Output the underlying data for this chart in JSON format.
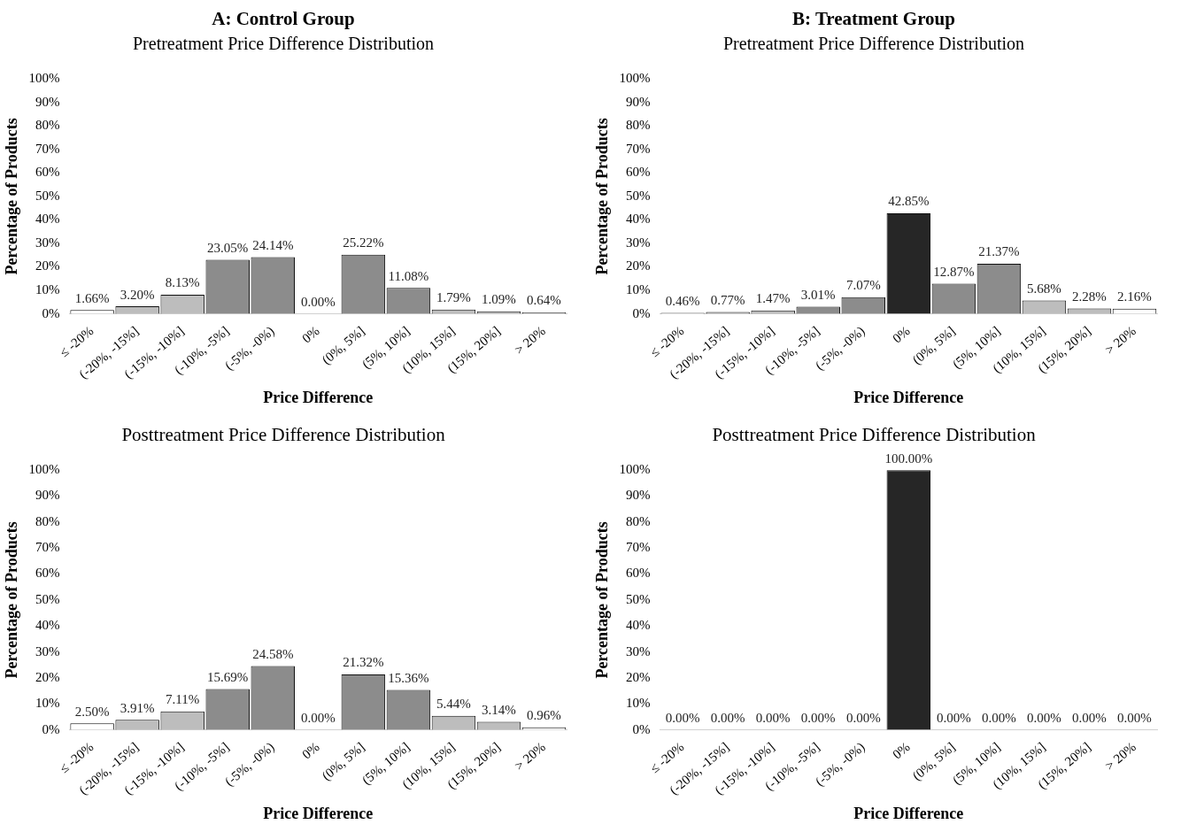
{
  "chart_data": [
    {
      "type": "bar",
      "title": "A: Control Group",
      "subtitle": "Pretreatment Price Difference Distribution",
      "xlabel": "Price Difference",
      "ylabel": "Percentage of Products",
      "categories": [
        "≤ -20%",
        "(-20%, -15%]",
        "(-15%, -10%]",
        "(-10%, -5%]",
        "(-5%, -0%)",
        "0%",
        "(0%, 5%]",
        "(5%, 10%]",
        "(10%, 15%]",
        "(15%, 20%]",
        "> 20%"
      ],
      "values": [
        1.66,
        3.2,
        8.13,
        23.05,
        24.14,
        0.0,
        25.22,
        11.08,
        1.79,
        1.09,
        0.64
      ],
      "value_labels": [
        "1.66%",
        "3.20%",
        "8.13%",
        "23.05%",
        "24.14%",
        "0.00%",
        "25.22%",
        "11.08%",
        "1.79%",
        "1.09%",
        "0.64%"
      ],
      "colors": [
        "#ffffff",
        "#bdbdbd",
        "#bdbdbd",
        "#8c8c8c",
        "#8c8c8c",
        "#262626",
        "#8c8c8c",
        "#8c8c8c",
        "#bdbdbd",
        "#bdbdbd",
        "#ffffff"
      ],
      "ylim": [
        0,
        100
      ],
      "yticks": [
        {
          "value": 0,
          "label": "0%"
        },
        {
          "value": 10,
          "label": "10%"
        },
        {
          "value": 20,
          "label": "20%"
        },
        {
          "value": 30,
          "label": "30%"
        },
        {
          "value": 40,
          "label": "40%"
        },
        {
          "value": 50,
          "label": "50%"
        },
        {
          "value": 60,
          "label": "60%"
        },
        {
          "value": 70,
          "label": "70%"
        },
        {
          "value": 80,
          "label": "80%"
        },
        {
          "value": 90,
          "label": "90%"
        },
        {
          "value": 100,
          "label": "100%"
        }
      ]
    },
    {
      "type": "bar",
      "title": "B: Treatment Group",
      "subtitle": "Pretreatment Price Difference Distribution",
      "xlabel": "Price Difference",
      "ylabel": "Percentage of Products",
      "categories": [
        "≤ -20%",
        "(-20%, -15%]",
        "(-15%, -10%]",
        "(-10%, -5%]",
        "(-5%, -0%)",
        "0%",
        "(0%, 5%]",
        "(5%, 10%]",
        "(10%, 15%]",
        "(15%, 20%]",
        "> 20%"
      ],
      "values": [
        0.46,
        0.77,
        1.47,
        3.01,
        7.07,
        42.85,
        12.87,
        21.37,
        5.68,
        2.28,
        2.16
      ],
      "value_labels": [
        "0.46%",
        "0.77%",
        "1.47%",
        "3.01%",
        "7.07%",
        "42.85%",
        "12.87%",
        "21.37%",
        "5.68%",
        "2.28%",
        "2.16%"
      ],
      "colors": [
        "#ffffff",
        "#bdbdbd",
        "#bdbdbd",
        "#8c8c8c",
        "#8c8c8c",
        "#262626",
        "#8c8c8c",
        "#8c8c8c",
        "#bdbdbd",
        "#bdbdbd",
        "#ffffff"
      ],
      "ylim": [
        0,
        100
      ],
      "yticks": [
        {
          "value": 0,
          "label": "0%"
        },
        {
          "value": 10,
          "label": "10%"
        },
        {
          "value": 20,
          "label": "20%"
        },
        {
          "value": 30,
          "label": "30%"
        },
        {
          "value": 40,
          "label": "40%"
        },
        {
          "value": 50,
          "label": "50%"
        },
        {
          "value": 60,
          "label": "60%"
        },
        {
          "value": 70,
          "label": "70%"
        },
        {
          "value": 80,
          "label": "80%"
        },
        {
          "value": 90,
          "label": "90%"
        },
        {
          "value": 100,
          "label": "100%"
        }
      ]
    },
    {
      "type": "bar",
      "title": "Posttreatment Price Difference Distribution",
      "xlabel": "Price Difference",
      "ylabel": "Percentage of Products",
      "categories": [
        "≤ -20%",
        "(-20%, -15%]",
        "(-15%, -10%]",
        "(-10%, -5%]",
        "(-5%, -0%)",
        "0%",
        "(0%, 5%]",
        "(5%, 10%]",
        "(10%, 15%]",
        "(15%, 20%]",
        "> 20%"
      ],
      "values": [
        2.5,
        3.91,
        7.11,
        15.69,
        24.58,
        0.0,
        21.32,
        15.36,
        5.44,
        3.14,
        0.96
      ],
      "value_labels": [
        "2.50%",
        "3.91%",
        "7.11%",
        "15.69%",
        "24.58%",
        "0.00%",
        "21.32%",
        "15.36%",
        "5.44%",
        "3.14%",
        "0.96%"
      ],
      "colors": [
        "#ffffff",
        "#bdbdbd",
        "#bdbdbd",
        "#8c8c8c",
        "#8c8c8c",
        "#262626",
        "#8c8c8c",
        "#8c8c8c",
        "#bdbdbd",
        "#bdbdbd",
        "#ffffff"
      ],
      "ylim": [
        0,
        100
      ],
      "yticks": [
        {
          "value": 0,
          "label": "0%"
        },
        {
          "value": 10,
          "label": "10%"
        },
        {
          "value": 20,
          "label": "20%"
        },
        {
          "value": 30,
          "label": "30%"
        },
        {
          "value": 40,
          "label": "40%"
        },
        {
          "value": 50,
          "label": "50%"
        },
        {
          "value": 60,
          "label": "60%"
        },
        {
          "value": 70,
          "label": "70%"
        },
        {
          "value": 80,
          "label": "80%"
        },
        {
          "value": 90,
          "label": "90%"
        },
        {
          "value": 100,
          "label": "100%"
        }
      ]
    },
    {
      "type": "bar",
      "title": "Posttreatment Price Difference Distribution",
      "xlabel": "Price Difference",
      "ylabel": "Percentage of Products",
      "categories": [
        "≤ -20%",
        "(-20%, -15%]",
        "(-15%, -10%]",
        "(-10%, -5%]",
        "(-5%, -0%)",
        "0%",
        "(0%, 5%]",
        "(5%, 10%]",
        "(10%, 15%]",
        "(15%, 20%]",
        "> 20%"
      ],
      "values": [
        0.0,
        0.0,
        0.0,
        0.0,
        0.0,
        100.0,
        0.0,
        0.0,
        0.0,
        0.0,
        0.0
      ],
      "value_labels": [
        "0.00%",
        "0.00%",
        "0.00%",
        "0.00%",
        "0.00%",
        "100.00%",
        "0.00%",
        "0.00%",
        "0.00%",
        "0.00%",
        "0.00%"
      ],
      "colors": [
        "#ffffff",
        "#bdbdbd",
        "#bdbdbd",
        "#8c8c8c",
        "#8c8c8c",
        "#262626",
        "#8c8c8c",
        "#8c8c8c",
        "#bdbdbd",
        "#bdbdbd",
        "#ffffff"
      ],
      "ylim": [
        0,
        100
      ],
      "yticks": [
        {
          "value": 0,
          "label": "0%"
        },
        {
          "value": 10,
          "label": "10%"
        },
        {
          "value": 20,
          "label": "20%"
        },
        {
          "value": 30,
          "label": "30%"
        },
        {
          "value": 40,
          "label": "40%"
        },
        {
          "value": 50,
          "label": "50%"
        },
        {
          "value": 60,
          "label": "60%"
        },
        {
          "value": 70,
          "label": "70%"
        },
        {
          "value": 80,
          "label": "80%"
        },
        {
          "value": 90,
          "label": "90%"
        },
        {
          "value": 100,
          "label": "100%"
        }
      ]
    }
  ]
}
